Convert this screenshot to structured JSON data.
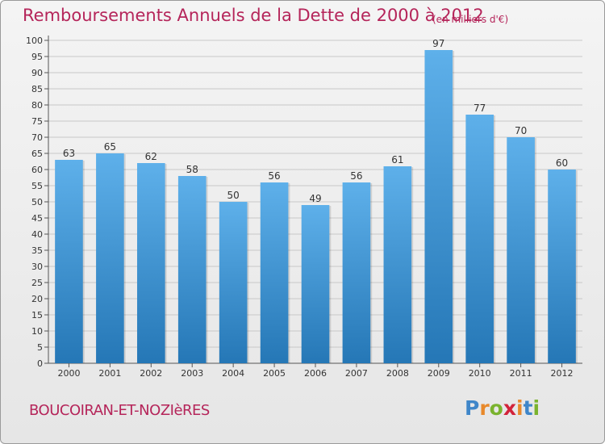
{
  "header": {
    "title": "Remboursements Annuels de la Dette de 2000 à 2012",
    "unit": "(en milliers d'€)"
  },
  "footer": {
    "commune": "BOUCOIRAN-ET-NOZIèRES",
    "logo": "Proxiti"
  },
  "colors": {
    "bar_top": "#5eb0ea",
    "bar_bottom": "#2577b6",
    "title": "#b5255a",
    "grid": "#c8c8c8"
  },
  "chart_data": {
    "type": "bar",
    "title": "Remboursements Annuels de la Dette de 2000 à 2012",
    "xlabel": "",
    "ylabel": "",
    "categories": [
      "2000",
      "2001",
      "2002",
      "2003",
      "2004",
      "2005",
      "2006",
      "2007",
      "2008",
      "2009",
      "2010",
      "2011",
      "2012"
    ],
    "values": [
      63,
      65,
      62,
      58,
      50,
      56,
      49,
      56,
      61,
      97,
      77,
      70,
      60
    ],
    "ylim": [
      0,
      100
    ],
    "ytick_step": 5,
    "grid": true,
    "data_labels": true
  }
}
